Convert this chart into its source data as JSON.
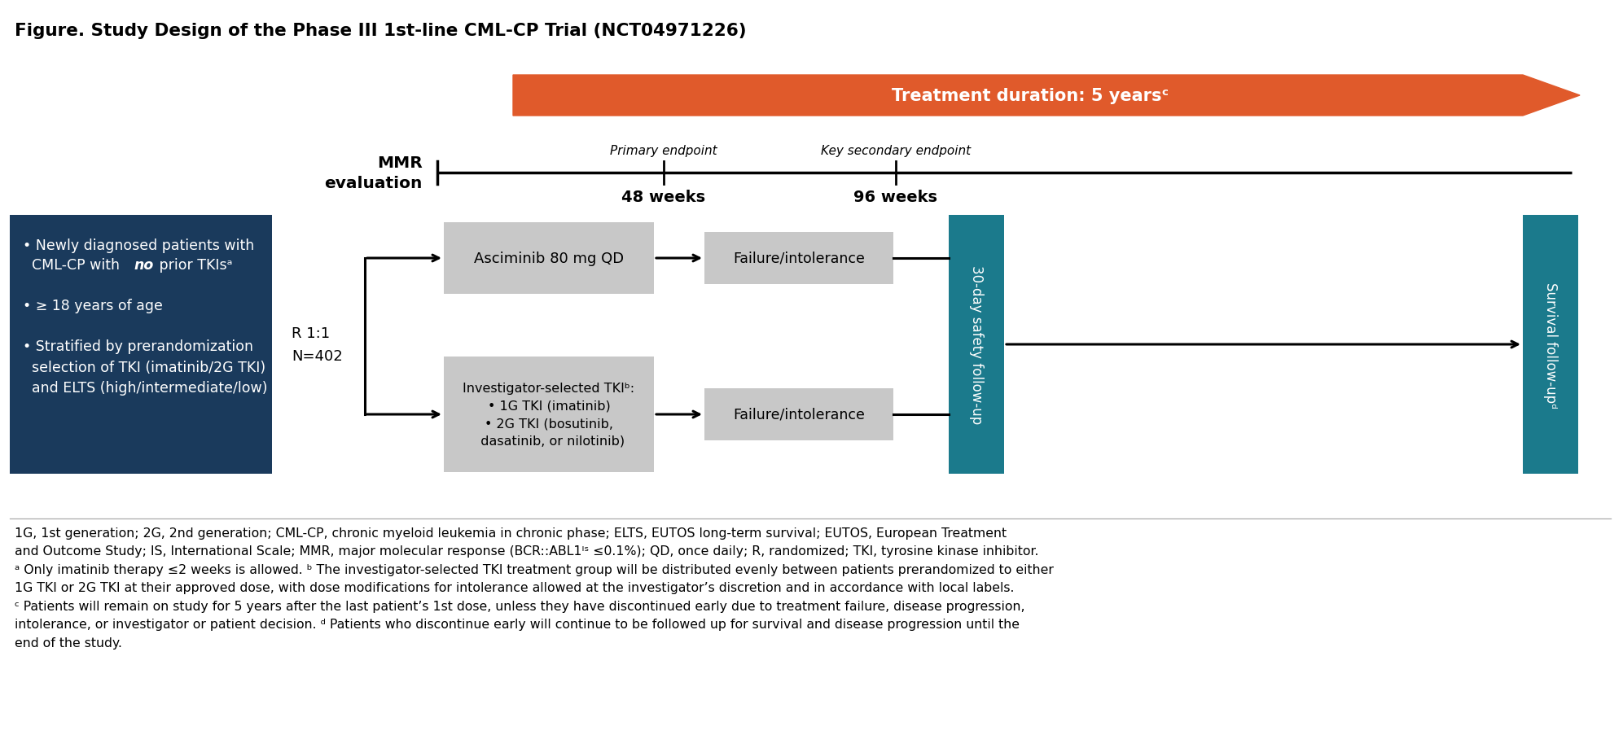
{
  "title": "Figure. Study Design of the Phase III 1st-line CML-CP Trial (NCT04971226)",
  "bg_color": "#ffffff",
  "dark_blue": "#1a3a5c",
  "teal": "#1b7a8c",
  "orange_arrow": "#e05a2b",
  "light_gray": "#c8c8c8",
  "black": "#000000",
  "white": "#ffffff",
  "mmr_label": "MMR\nevaluation",
  "r_label": "R 1:1\nN=402",
  "treatment_arrow_text": "Treatment duration: 5 yearsᶜ",
  "primary_endpoint_label": "Primary endpoint",
  "secondary_endpoint_label": "Key secondary endpoint",
  "weeks_48": "48 weeks",
  "weeks_96": "96 weeks",
  "top_arm_text": "Asciminib 80 mg QD",
  "bottom_arm_text": "Investigator-selected TKIᵇ:\n• 1G TKI (imatinib)\n• 2G TKI (bosutinib,\n  dasatinib, or nilotinib)",
  "failure_text": "Failure/intolerance",
  "safety_text": "30-day safety follow-up",
  "survival_text": "Survival follow-upᵈ",
  "footnote_line1": "1G, 1st generation; 2G, 2nd generation; CML-CP, chronic myeloid leukemia in chronic phase; ELTS, EUTOS long-term survival; EUTOS, European Treatment",
  "footnote_line2": "and Outcome Study; IS, International Scale; MMR, major molecular response (BCR::ABL1ᴵˢ ≤0.1%); QD, once daily; R, randomized; TKI, tyrosine kinase inhibitor.",
  "footnote_line3": "ᵃ Only imatinib therapy ≤2 weeks is allowed. ᵇ The investigator-selected TKI treatment group will be distributed evenly between patients prerandomized to either",
  "footnote_line4": "1G TKI or 2G TKI at their approved dose, with dose modifications for intolerance allowed at the investigator’s discretion and in accordance with local labels.",
  "footnote_line5": "ᶜ Patients will remain on study for 5 years after the last patient’s 1st dose, unless they have discontinued early due to treatment failure, disease progression,",
  "footnote_line6": "intolerance, or investigator or patient decision. ᵈ Patients who discontinue early will continue to be followed up for survival and disease progression until the",
  "footnote_line7": "end of the study."
}
